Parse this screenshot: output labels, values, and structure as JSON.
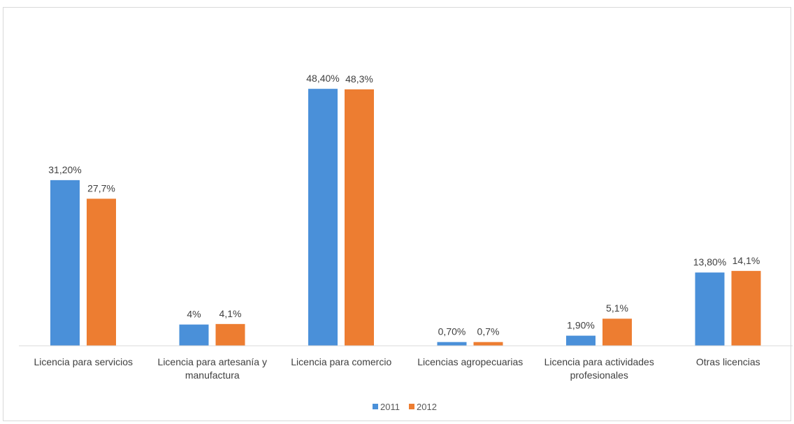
{
  "chart_data": {
    "type": "bar",
    "title": "",
    "xlabel": "",
    "ylabel": "",
    "ylim": [
      0,
      52
    ],
    "grid": false,
    "legend_position": "bottom",
    "categories": [
      [
        "Licencia para servicios"
      ],
      [
        "Licencia para artesanía y",
        "manufactura"
      ],
      [
        "Licencia para comercio"
      ],
      [
        "Licencias agropecuarias"
      ],
      [
        "Licencia para actividades",
        "profesionales"
      ],
      [
        "Otras licencias"
      ]
    ],
    "series": [
      {
        "name": "2011",
        "color": "#4a90d9",
        "values": [
          31.2,
          4,
          48.4,
          0.7,
          1.9,
          13.8
        ],
        "labels": [
          "31,20%",
          "4%",
          "48,40%",
          "0,70%",
          "1,90%",
          "13,80%"
        ]
      },
      {
        "name": "2012",
        "color": "#ed7d31",
        "values": [
          27.7,
          4.1,
          48.3,
          0.7,
          5.1,
          14.1
        ],
        "labels": [
          "27,7%",
          "4,1%",
          "48,3%",
          "0,7%",
          "5,1%",
          "14,1%"
        ]
      }
    ]
  }
}
